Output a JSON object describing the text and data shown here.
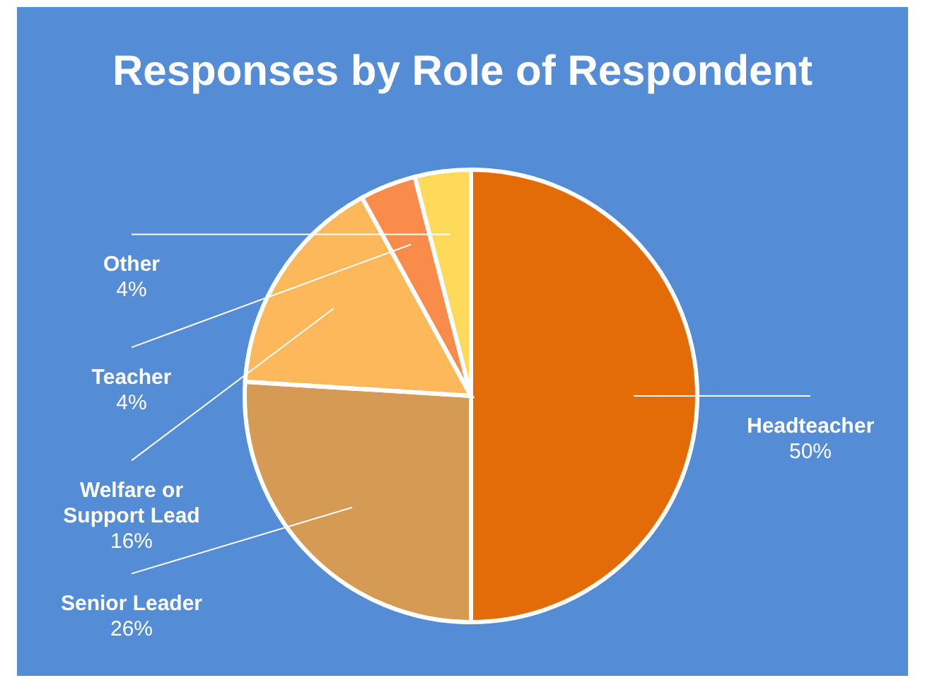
{
  "chart_data": {
    "type": "pie",
    "title": "Responses by Role of Respondent",
    "categories": [
      "Headteacher",
      "Senior Leader",
      "Welfare or Support Lead",
      "Teacher",
      "Other"
    ],
    "values": [
      50,
      26,
      16,
      4,
      4
    ],
    "value_labels": [
      "50%",
      "26%",
      "16%",
      "4%",
      "4%"
    ],
    "colors": [
      "#e36c09",
      "#d59b55",
      "#fdb85c",
      "#f98c4a",
      "#fed95a"
    ]
  }
}
